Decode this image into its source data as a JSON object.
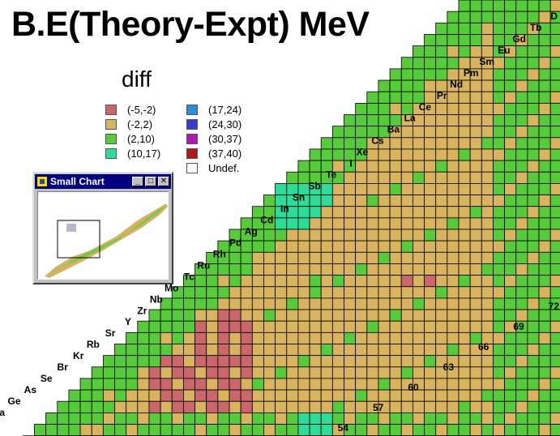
{
  "page_title": "B.E(Theory-Expt) MeV",
  "legend": {
    "title": "diff",
    "items": [
      {
        "label": "(-5,-2)",
        "color": "#c9676a"
      },
      {
        "label": "(-2,2)",
        "color": "#d8b461"
      },
      {
        "label": "(2,10)",
        "color": "#58cb3c"
      },
      {
        "label": "(10,17)",
        "color": "#2edc98"
      },
      {
        "label": "(17,24)",
        "color": "#2c8ed8"
      },
      {
        "label": "(24,30)",
        "color": "#3a3ad0"
      },
      {
        "label": "(30,37)",
        "color": "#b418b4"
      },
      {
        "label": "(37,40)",
        "color": "#b01818"
      },
      {
        "label": "Undef.",
        "color": "#ffffff"
      }
    ]
  },
  "chart_data": {
    "type": "heatmap",
    "title": "B.E(Theory-Expt) MeV",
    "value_label": "diff",
    "element_labels": [
      "Ga",
      "Ge",
      "As",
      "Se",
      "Br",
      "Kr",
      "Rb",
      "Sr",
      "Y",
      "Zr",
      "Nb",
      "Mo",
      "Tc",
      "Ru",
      "Rh",
      "Pd",
      "Ag",
      "Cd",
      "In",
      "Sn",
      "Sb",
      "Te",
      "I",
      "Xe",
      "Cs",
      "Ba",
      "La",
      "Ce",
      "Pr",
      "Nd",
      "Pm",
      "Sm",
      "Eu",
      "Gd",
      "Tb",
      "D"
    ],
    "neutron_labels": [
      "54",
      "57",
      "60",
      "63",
      "66",
      "69",
      "72"
    ],
    "bins": [
      "(-5,-2)",
      "(-2,2)",
      "(2,10)",
      "(10,17)",
      "(17,24)",
      "(24,30)",
      "(30,37)",
      "(37,40)",
      "Undef."
    ]
  },
  "small_chart": {
    "title": "Small Chart",
    "minimize": "_",
    "maximize": "□",
    "close": "✕"
  }
}
